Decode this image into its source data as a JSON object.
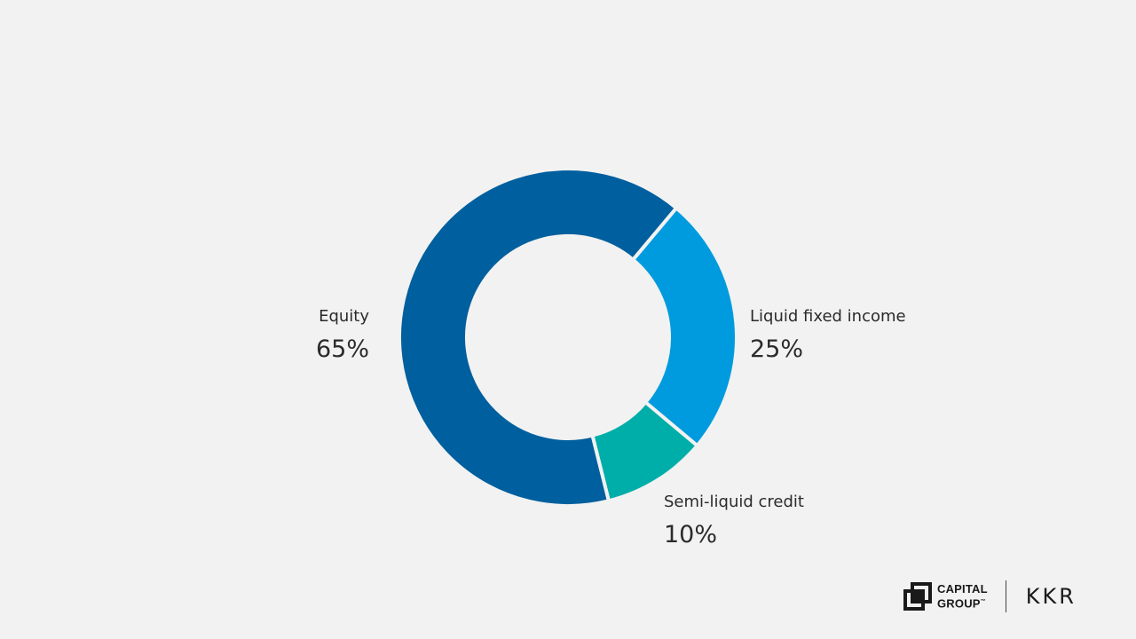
{
  "chart_data": {
    "type": "pie",
    "donut": true,
    "title": "",
    "slices": [
      {
        "label": "Equity",
        "value": 65,
        "display": "65%",
        "color": "#005f9e"
      },
      {
        "label": "Liquid fixed income",
        "value": 25,
        "display": "25%",
        "color": "#009bde"
      },
      {
        "label": "Semi-liquid credit",
        "value": 10,
        "display": "10%",
        "color": "#00aea9"
      }
    ]
  },
  "branding": {
    "capital_group_line1": "CAPITAL",
    "capital_group_line2": "GROUP",
    "capital_group_tm": "™",
    "kkr": "KKR",
    "mark_color": "#1a1a1a"
  }
}
